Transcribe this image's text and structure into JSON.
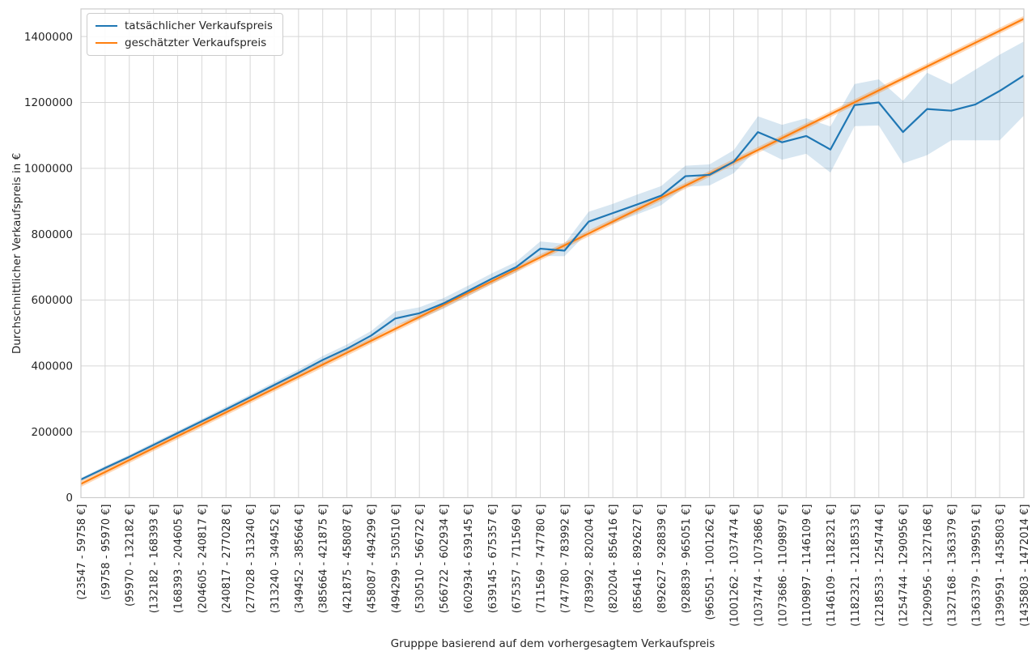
{
  "colors": {
    "actual_line": "#1f77b4",
    "estimated_line": "#ff7f0e",
    "actual_band_fill": "rgba(31,119,180,0.18)",
    "estimated_band_fill": "rgba(255,127,14,0.30)",
    "grid": "#d7d7d7",
    "spine": "#cccccc",
    "text": "#262626"
  },
  "chart_data": {
    "type": "line",
    "title": "",
    "xlabel": "Grupppe basierend auf dem vorhergesagtem Verkaufspreis",
    "ylabel": "Durchschnittlicher Verkaufspreis in €",
    "grid": true,
    "legend_position": "upper-left",
    "x_tick_rotation": 90,
    "ylim": [
      0,
      1484000
    ],
    "y_ticks": [
      0,
      200000,
      400000,
      600000,
      800000,
      1000000,
      1200000,
      1400000
    ],
    "categories": [
      "(23547 - 59758 €]",
      "(59758 - 95970 €]",
      "(95970 - 132182 €]",
      "(132182 - 168393 €]",
      "(168393 - 204605 €]",
      "(204605 - 240817 €]",
      "(240817 - 277028 €]",
      "(277028 - 313240 €]",
      "(313240 - 349452 €]",
      "(349452 - 385664 €]",
      "(385664 - 421875 €]",
      "(421875 - 458087 €]",
      "(458087 - 494299 €]",
      "(494299 - 530510 €]",
      "(530510 - 566722 €]",
      "(566722 - 602934 €]",
      "(602934 - 639145 €]",
      "(639145 - 675357 €]",
      "(675357 - 711569 €]",
      "(711569 - 747780 €]",
      "(747780 - 783992 €]",
      "(783992 - 820204 €]",
      "(820204 - 856416 €]",
      "(856416 - 892627 €]",
      "(892627 - 928839 €]",
      "(928839 - 965051 €]",
      "(965051 - 1001262 €]",
      "(1001262 - 1037474 €]",
      "(1037474 - 1073686 €]",
      "(1073686 - 1109897 €]",
      "(1109897 - 1146109 €]",
      "(1146109 - 1182321 €]",
      "(1182321 - 1218533 €]",
      "(1218533 - 1254744 €]",
      "(1254744 - 1290956 €]",
      "(1290956 - 1327168 €]",
      "(1327168 - 1363379 €]",
      "(1363379 - 1399591 €]",
      "(1399591 - 1435803 €]",
      "(1435803 - 1472014 €]"
    ],
    "series": [
      {
        "name": "tatsächlicher Verkaufspreis",
        "color": "#1f77b4",
        "values": [
          55000,
          90000,
          124000,
          160000,
          196000,
          232000,
          268000,
          305000,
          342000,
          379000,
          418000,
          452000,
          492000,
          544000,
          560000,
          590000,
          627000,
          665000,
          700000,
          756000,
          750000,
          838000,
          864000,
          890000,
          917000,
          976000,
          980000,
          1020000,
          1110000,
          1079000,
          1098000,
          1057000,
          1192000,
          1200000,
          1110000,
          1180000,
          1175000,
          1194000,
          1235000,
          1282000
        ],
        "band_lower": [
          50000,
          84000,
          118000,
          153000,
          189000,
          225000,
          260000,
          297000,
          333000,
          369000,
          406000,
          439000,
          478000,
          523000,
          542000,
          574000,
          611000,
          649000,
          684000,
          734000,
          733000,
          808000,
          832000,
          860000,
          888000,
          944000,
          948000,
          985000,
          1062000,
          1026000,
          1044000,
          987000,
          1128000,
          1130000,
          1015000,
          1040000,
          1085000,
          1085000,
          1085000,
          1160000
        ],
        "band_upper": [
          60000,
          96000,
          130000,
          167000,
          203000,
          239000,
          276000,
          313000,
          351000,
          389000,
          430000,
          465000,
          506000,
          565000,
          578000,
          606000,
          643000,
          681000,
          716000,
          778000,
          771000,
          868000,
          892000,
          920000,
          946000,
          1008000,
          1012000,
          1055000,
          1158000,
          1132000,
          1152000,
          1127000,
          1256000,
          1270000,
          1205000,
          1290000,
          1255000,
          1300000,
          1345000,
          1385000
        ]
      },
      {
        "name": "geschätzter Verkaufspreis",
        "color": "#ff7f0e",
        "values": [
          41653,
          77864,
          114076,
          150288,
          186500,
          222711,
          258923,
          295135,
          331346,
          367558,
          403770,
          439981,
          476193,
          512405,
          548617,
          584828,
          621040,
          657252,
          693463,
          729675,
          765887,
          802098,
          838310,
          874522,
          910734,
          946945,
          983157,
          1019369,
          1055580,
          1091792,
          1128004,
          1164215,
          1200427,
          1236639,
          1272851,
          1309062,
          1345274,
          1381486,
          1417697,
          1453909
        ],
        "band_halfwidth": 9000
      }
    ]
  }
}
